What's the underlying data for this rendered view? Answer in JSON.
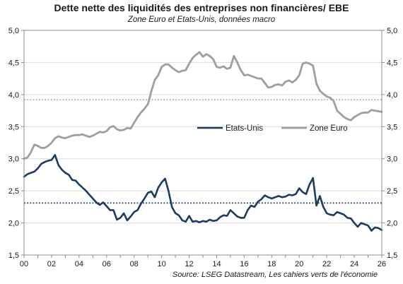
{
  "title": "Dette nette des liquidités des entreprises non financières/ EBE",
  "subtitle": "Zone Euro et Etats-Unis, données macro",
  "source": "Source: LSEG Datastream, Les cahiers verts de l'économie",
  "chart_data": {
    "type": "line",
    "title": "Dette nette des liquidités des entreprises non financières/ EBE",
    "subtitle": "Zone Euro et Etats-Unis, données macro",
    "xlim": [
      2000,
      2026
    ],
    "ylim": [
      1.5,
      5.0
    ],
    "y_ticks": [
      "1,5",
      "2,0",
      "2,5",
      "3,0",
      "3,5",
      "4,0",
      "4,5",
      "5,0"
    ],
    "y_tick_values": [
      1.5,
      2.0,
      2.5,
      3.0,
      3.5,
      4.0,
      4.5,
      5.0
    ],
    "x_ticks": [
      "00",
      "02",
      "04",
      "06",
      "08",
      "10",
      "12",
      "14",
      "16",
      "18",
      "20",
      "22",
      "24",
      "26"
    ],
    "x_tick_values": [
      2000,
      2002,
      2004,
      2006,
      2008,
      2010,
      2012,
      2014,
      2016,
      2018,
      2020,
      2022,
      2024,
      2026
    ],
    "legend_position": "middle-right",
    "series": [
      {
        "name": "Etats-Unis",
        "color": "#1f3a5f",
        "average": 2.31,
        "points": [
          [
            2000.0,
            2.72
          ],
          [
            2000.25,
            2.76
          ],
          [
            2000.5,
            2.78
          ],
          [
            2000.75,
            2.8
          ],
          [
            2001.0,
            2.85
          ],
          [
            2001.25,
            2.92
          ],
          [
            2001.5,
            2.95
          ],
          [
            2001.75,
            2.97
          ],
          [
            2002.0,
            2.98
          ],
          [
            2002.25,
            3.06
          ],
          [
            2002.5,
            2.9
          ],
          [
            2002.75,
            2.83
          ],
          [
            2003.0,
            2.78
          ],
          [
            2003.25,
            2.75
          ],
          [
            2003.5,
            2.67
          ],
          [
            2003.75,
            2.66
          ],
          [
            2004.0,
            2.6
          ],
          [
            2004.25,
            2.55
          ],
          [
            2004.5,
            2.5
          ],
          [
            2004.75,
            2.44
          ],
          [
            2005.0,
            2.38
          ],
          [
            2005.25,
            2.32
          ],
          [
            2005.5,
            2.28
          ],
          [
            2005.75,
            2.32
          ],
          [
            2006.0,
            2.26
          ],
          [
            2006.25,
            2.2
          ],
          [
            2006.5,
            2.2
          ],
          [
            2006.75,
            2.05
          ],
          [
            2007.0,
            2.08
          ],
          [
            2007.25,
            2.15
          ],
          [
            2007.5,
            2.04
          ],
          [
            2007.75,
            2.1
          ],
          [
            2008.0,
            2.17
          ],
          [
            2008.25,
            2.2
          ],
          [
            2008.5,
            2.3
          ],
          [
            2008.75,
            2.38
          ],
          [
            2009.0,
            2.47
          ],
          [
            2009.25,
            2.49
          ],
          [
            2009.5,
            2.4
          ],
          [
            2009.75,
            2.55
          ],
          [
            2010.0,
            2.63
          ],
          [
            2010.25,
            2.69
          ],
          [
            2010.5,
            2.5
          ],
          [
            2010.75,
            2.25
          ],
          [
            2011.0,
            2.15
          ],
          [
            2011.25,
            2.12
          ],
          [
            2011.5,
            2.04
          ],
          [
            2011.75,
            2.02
          ],
          [
            2012.0,
            2.11
          ],
          [
            2012.25,
            2.02
          ],
          [
            2012.5,
            2.03
          ],
          [
            2012.75,
            2.01
          ],
          [
            2013.0,
            2.03
          ],
          [
            2013.25,
            2.02
          ],
          [
            2013.5,
            2.05
          ],
          [
            2013.75,
            2.03
          ],
          [
            2014.0,
            2.04
          ],
          [
            2014.25,
            2.09
          ],
          [
            2014.5,
            2.12
          ],
          [
            2014.75,
            2.11
          ],
          [
            2015.0,
            2.2
          ],
          [
            2015.25,
            2.15
          ],
          [
            2015.5,
            2.1
          ],
          [
            2015.75,
            2.08
          ],
          [
            2016.0,
            2.08
          ],
          [
            2016.25,
            2.2
          ],
          [
            2016.5,
            2.27
          ],
          [
            2016.75,
            2.25
          ],
          [
            2017.0,
            2.33
          ],
          [
            2017.25,
            2.37
          ],
          [
            2017.5,
            2.43
          ],
          [
            2017.75,
            2.4
          ],
          [
            2018.0,
            2.38
          ],
          [
            2018.25,
            2.4
          ],
          [
            2018.5,
            2.42
          ],
          [
            2018.75,
            2.4
          ],
          [
            2019.0,
            2.41
          ],
          [
            2019.25,
            2.44
          ],
          [
            2019.5,
            2.43
          ],
          [
            2019.75,
            2.45
          ],
          [
            2020.0,
            2.54
          ],
          [
            2020.25,
            2.48
          ],
          [
            2020.5,
            2.45
          ],
          [
            2020.75,
            2.6
          ],
          [
            2021.0,
            2.7
          ],
          [
            2021.25,
            2.27
          ],
          [
            2021.5,
            2.42
          ],
          [
            2021.75,
            2.25
          ],
          [
            2022.0,
            2.15
          ],
          [
            2022.25,
            2.13
          ],
          [
            2022.5,
            2.12
          ],
          [
            2022.75,
            2.17
          ],
          [
            2023.0,
            2.15
          ],
          [
            2023.25,
            2.13
          ],
          [
            2023.5,
            2.08
          ],
          [
            2023.75,
            2.07
          ],
          [
            2024.0,
            2.0
          ],
          [
            2024.25,
            1.94
          ],
          [
            2024.5,
            2.0
          ],
          [
            2024.75,
            1.98
          ],
          [
            2025.0,
            1.96
          ],
          [
            2025.25,
            1.88
          ],
          [
            2025.5,
            1.93
          ],
          [
            2025.75,
            1.92
          ],
          [
            2026.0,
            1.89
          ]
        ]
      },
      {
        "name": "Zone Euro",
        "color": "#9e9e9e",
        "average": 3.92,
        "points": [
          [
            2000.0,
            3.0
          ],
          [
            2000.25,
            3.02
          ],
          [
            2000.5,
            3.1
          ],
          [
            2000.75,
            3.22
          ],
          [
            2001.0,
            3.2
          ],
          [
            2001.25,
            3.17
          ],
          [
            2001.5,
            3.17
          ],
          [
            2001.75,
            3.2
          ],
          [
            2002.0,
            3.25
          ],
          [
            2002.25,
            3.32
          ],
          [
            2002.5,
            3.35
          ],
          [
            2002.75,
            3.33
          ],
          [
            2003.0,
            3.32
          ],
          [
            2003.25,
            3.34
          ],
          [
            2003.5,
            3.36
          ],
          [
            2003.75,
            3.37
          ],
          [
            2004.0,
            3.37
          ],
          [
            2004.25,
            3.38
          ],
          [
            2004.5,
            3.36
          ],
          [
            2004.75,
            3.34
          ],
          [
            2005.0,
            3.36
          ],
          [
            2005.25,
            3.39
          ],
          [
            2005.5,
            3.42
          ],
          [
            2005.75,
            3.41
          ],
          [
            2006.0,
            3.43
          ],
          [
            2006.25,
            3.49
          ],
          [
            2006.5,
            3.51
          ],
          [
            2006.75,
            3.46
          ],
          [
            2007.0,
            3.44
          ],
          [
            2007.25,
            3.45
          ],
          [
            2007.5,
            3.48
          ],
          [
            2007.75,
            3.47
          ],
          [
            2008.0,
            3.56
          ],
          [
            2008.25,
            3.65
          ],
          [
            2008.5,
            3.72
          ],
          [
            2008.75,
            3.78
          ],
          [
            2009.0,
            3.85
          ],
          [
            2009.25,
            4.05
          ],
          [
            2009.5,
            4.23
          ],
          [
            2009.75,
            4.3
          ],
          [
            2010.0,
            4.43
          ],
          [
            2010.25,
            4.47
          ],
          [
            2010.5,
            4.47
          ],
          [
            2010.75,
            4.42
          ],
          [
            2011.0,
            4.38
          ],
          [
            2011.25,
            4.35
          ],
          [
            2011.5,
            4.37
          ],
          [
            2011.75,
            4.38
          ],
          [
            2012.0,
            4.48
          ],
          [
            2012.25,
            4.57
          ],
          [
            2012.5,
            4.62
          ],
          [
            2012.75,
            4.66
          ],
          [
            2013.0,
            4.59
          ],
          [
            2013.25,
            4.63
          ],
          [
            2013.5,
            4.6
          ],
          [
            2013.75,
            4.55
          ],
          [
            2014.0,
            4.43
          ],
          [
            2014.25,
            4.42
          ],
          [
            2014.5,
            4.44
          ],
          [
            2014.75,
            4.4
          ],
          [
            2015.0,
            4.42
          ],
          [
            2015.25,
            4.6
          ],
          [
            2015.5,
            4.5
          ],
          [
            2015.75,
            4.38
          ],
          [
            2016.0,
            4.3
          ],
          [
            2016.25,
            4.31
          ],
          [
            2016.5,
            4.29
          ],
          [
            2016.75,
            4.27
          ],
          [
            2017.0,
            4.25
          ],
          [
            2017.25,
            4.25
          ],
          [
            2017.5,
            4.18
          ],
          [
            2017.75,
            4.11
          ],
          [
            2018.0,
            4.12
          ],
          [
            2018.25,
            4.15
          ],
          [
            2018.5,
            4.16
          ],
          [
            2018.75,
            4.14
          ],
          [
            2019.0,
            4.2
          ],
          [
            2019.25,
            4.22
          ],
          [
            2019.5,
            4.19
          ],
          [
            2019.75,
            4.23
          ],
          [
            2020.0,
            4.3
          ],
          [
            2020.25,
            4.48
          ],
          [
            2020.5,
            4.5
          ],
          [
            2020.75,
            4.48
          ],
          [
            2021.0,
            4.45
          ],
          [
            2021.25,
            4.17
          ],
          [
            2021.5,
            4.06
          ],
          [
            2021.75,
            4.01
          ],
          [
            2022.0,
            3.97
          ],
          [
            2022.25,
            3.95
          ],
          [
            2022.5,
            3.9
          ],
          [
            2022.75,
            3.75
          ],
          [
            2023.0,
            3.7
          ],
          [
            2023.25,
            3.65
          ],
          [
            2023.5,
            3.62
          ],
          [
            2023.75,
            3.6
          ],
          [
            2024.0,
            3.65
          ],
          [
            2024.25,
            3.68
          ],
          [
            2024.5,
            3.71
          ],
          [
            2024.75,
            3.72
          ],
          [
            2025.0,
            3.72
          ],
          [
            2025.25,
            3.76
          ],
          [
            2025.5,
            3.75
          ],
          [
            2025.75,
            3.74
          ],
          [
            2026.0,
            3.73
          ]
        ]
      }
    ]
  }
}
